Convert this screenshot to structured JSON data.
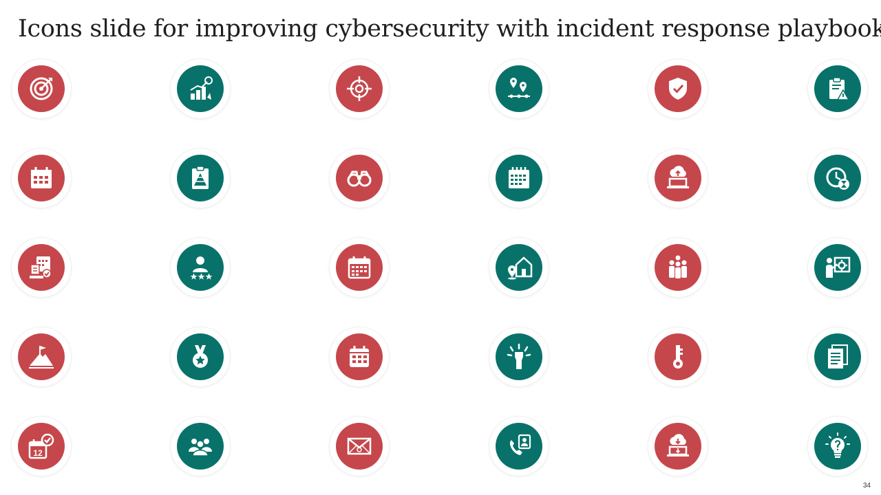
{
  "slide": {
    "title": "Icons slide for improving cybersecurity with incident response playbook",
    "page_number": "34"
  },
  "colors": {
    "red": "#c5474b",
    "teal": "#08726a"
  },
  "icons": [
    {
      "name": "target-dart-icon",
      "color": "red"
    },
    {
      "name": "growth-chart-icon",
      "color": "teal"
    },
    {
      "name": "crosshair-icon",
      "color": "red"
    },
    {
      "name": "location-pins-icon",
      "color": "teal"
    },
    {
      "name": "shield-check-icon",
      "color": "red"
    },
    {
      "name": "clipboard-warning-icon",
      "color": "teal"
    },
    {
      "name": "calendar-icon",
      "color": "red"
    },
    {
      "name": "clipboard-pyramid-icon",
      "color": "teal"
    },
    {
      "name": "binoculars-icon",
      "color": "red"
    },
    {
      "name": "calendar-grid-icon",
      "color": "teal"
    },
    {
      "name": "cloud-upload-laptop-icon",
      "color": "red"
    },
    {
      "name": "clock-hourglass-icon",
      "color": "teal"
    },
    {
      "name": "schedule-checklist-icon",
      "color": "red"
    },
    {
      "name": "user-rating-icon",
      "color": "teal"
    },
    {
      "name": "calendar-date-icon",
      "color": "red"
    },
    {
      "name": "home-location-icon",
      "color": "teal"
    },
    {
      "name": "team-group-icon",
      "color": "red"
    },
    {
      "name": "presentation-gear-icon",
      "color": "teal"
    },
    {
      "name": "mountain-flag-icon",
      "color": "red"
    },
    {
      "name": "medal-icon",
      "color": "teal"
    },
    {
      "name": "calendar-month-icon",
      "color": "red"
    },
    {
      "name": "fist-power-icon",
      "color": "teal"
    },
    {
      "name": "key-icon",
      "color": "red"
    },
    {
      "name": "documents-icon",
      "color": "teal"
    },
    {
      "name": "calendar-check-icon",
      "color": "red"
    },
    {
      "name": "people-group-icon",
      "color": "teal"
    },
    {
      "name": "envelope-icon",
      "color": "red"
    },
    {
      "name": "phone-contact-icon",
      "color": "teal"
    },
    {
      "name": "cloud-download-laptop-icon",
      "color": "red"
    },
    {
      "name": "lightbulb-question-icon",
      "color": "teal"
    }
  ],
  "icon_texts": {
    "calendar_number": "12"
  }
}
